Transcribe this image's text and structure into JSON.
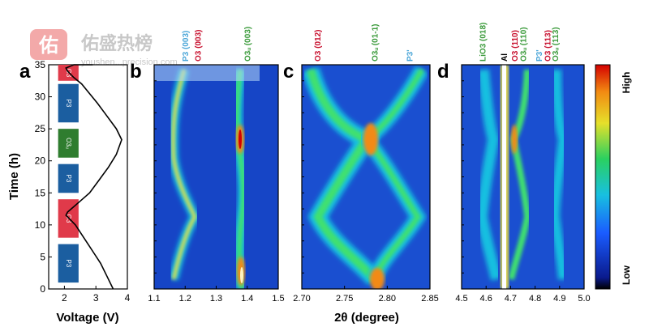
{
  "watermark": {
    "logo_char": "佑",
    "name": "佑盛热榜",
    "url": "youshen...precision.com"
  },
  "colors": {
    "P3": "#1b5ea0",
    "O3": "#e03a4a",
    "O3u": "#2f7d2f",
    "label_P3": "#4aa6d8",
    "label_O3": "#c8102e",
    "label_O3u": "#3a9a3a",
    "map_low": "#0a1a8c",
    "map_mid": "#18c0e0",
    "map_high": "#d40000"
  },
  "chart_data": [
    {
      "panel": "a",
      "type": "line",
      "xlabel": "Voltage (V)",
      "ylabel": "Time (h)",
      "xlim": [
        1.5,
        4.0
      ],
      "ylim": [
        0,
        35
      ],
      "x_ticks": [
        "2",
        "3",
        "4"
      ],
      "y_ticks": [
        "0",
        "5",
        "10",
        "15",
        "20",
        "25",
        "30",
        "35"
      ],
      "series": [
        {
          "x": [
            3.55,
            3.35,
            3.15,
            2.95,
            2.75,
            2.55,
            2.35,
            2.15,
            2.05,
            2.1,
            2.45,
            2.8,
            3.1,
            3.4,
            3.65,
            3.82,
            3.65,
            3.35,
            3.05,
            2.8,
            2.55,
            2.3,
            2.1,
            2.05,
            2.3,
            2.9
          ],
          "y": [
            0,
            2,
            4,
            5.5,
            7,
            8.5,
            10,
            11,
            11.5,
            12,
            13.5,
            15,
            17,
            19,
            21,
            23.3,
            25,
            27,
            29,
            30.5,
            32,
            33,
            34,
            34.5,
            35,
            35
          ]
        }
      ],
      "phase_bands": [
        {
          "label": "P3",
          "from": 1,
          "to": 7
        },
        {
          "label": "O3",
          "from": 8,
          "to": 14
        },
        {
          "label": "P3",
          "from": 15,
          "to": 19.5
        },
        {
          "label": "O3u",
          "from": 20.5,
          "to": 25
        },
        {
          "label": "P3",
          "from": 26,
          "to": 32
        },
        {
          "label": "O3",
          "from": 32.5,
          "to": 35
        }
      ]
    },
    {
      "panel": "b",
      "type": "heatmap",
      "xlim": [
        1.1,
        1.5
      ],
      "ylim": [
        0,
        35
      ],
      "x_ticks": [
        "1.1",
        "1.2",
        "1.3",
        "1.4",
        "1.5"
      ],
      "peak_labels": [
        {
          "text": "P3 (003)",
          "x": 1.2,
          "phase": "P3"
        },
        {
          "text": "O3 (003)",
          "x": 1.24,
          "phase": "O3"
        },
        {
          "text": "O3ᵤ (003)",
          "x": 1.4,
          "phase": "O3u"
        }
      ]
    },
    {
      "panel": "c",
      "type": "heatmap",
      "xlim": [
        2.7,
        2.85
      ],
      "ylim": [
        0,
        35
      ],
      "x_ticks": [
        "2.70",
        "2.75",
        "2.80",
        "2.85"
      ],
      "peak_labels": [
        {
          "text": "O3 (012)",
          "x": 2.718,
          "phase": "O3"
        },
        {
          "text": "O3ᵤ (01-1)",
          "x": 2.785,
          "phase": "O3u"
        },
        {
          "text": "P3'",
          "x": 2.826,
          "phase": "P3"
        }
      ]
    },
    {
      "panel": "d",
      "type": "heatmap",
      "xlim": [
        4.5,
        5.0
      ],
      "ylim": [
        0,
        35
      ],
      "x_ticks": [
        "4.5",
        "4.6",
        "4.7",
        "4.8",
        "4.9",
        "5.0"
      ],
      "peak_labels": [
        {
          "text": "LiO3 (018)",
          "x": 4.585,
          "phase": "O3u"
        },
        {
          "text": "Al",
          "x": 4.672,
          "phase": "black"
        },
        {
          "text": "O3 (110)",
          "x": 4.715,
          "phase": "O3"
        },
        {
          "text": "O3ᵤ (110)",
          "x": 4.75,
          "phase": "O3u"
        },
        {
          "text": "P3'",
          "x": 4.815,
          "phase": "P3"
        },
        {
          "text": "O3 (113)",
          "x": 4.85,
          "phase": "O3"
        },
        {
          "text": "O3ᵤ (113)",
          "x": 4.88,
          "phase": "O3u"
        }
      ]
    }
  ],
  "panel_letters": [
    "a",
    "b",
    "c",
    "d"
  ],
  "shared_xlabel": "2θ (degree)",
  "colorbar": {
    "high": "High",
    "low": "Low"
  }
}
